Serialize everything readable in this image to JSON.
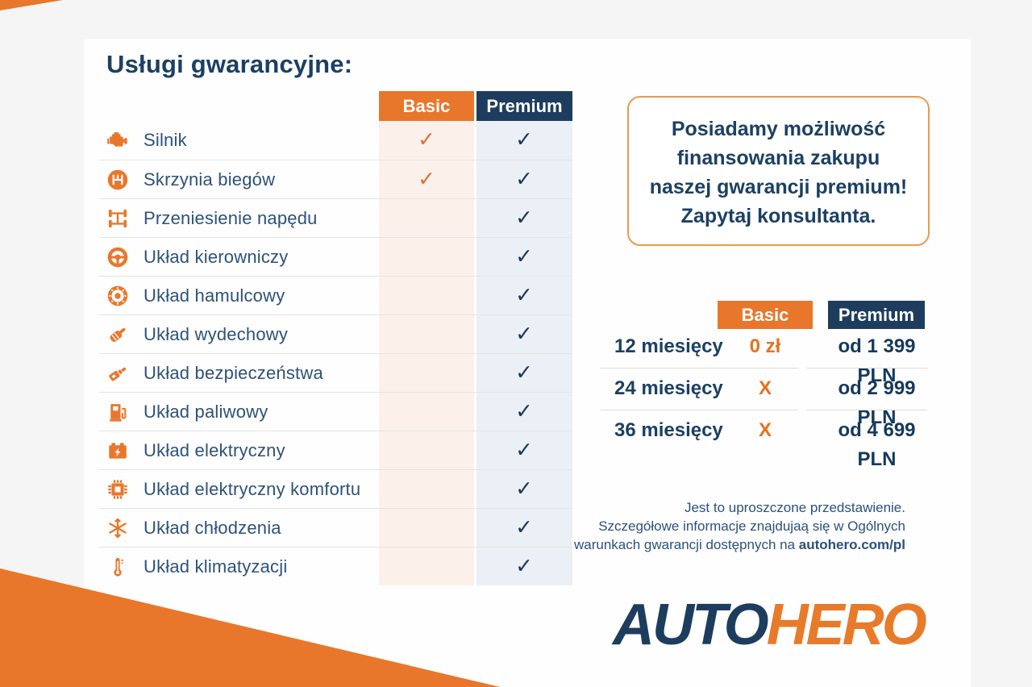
{
  "services": {
    "title": "Usługi gwarancyjne:",
    "header": {
      "basic": "Basic",
      "premium": "Premium"
    },
    "check_glyph": "✓",
    "rows": [
      {
        "icon": "engine-icon",
        "label": "Silnik",
        "basic": true,
        "premium": true
      },
      {
        "icon": "gearbox-icon",
        "label": "Skrzynia biegów",
        "basic": true,
        "premium": true
      },
      {
        "icon": "drivetrain-icon",
        "label": "Przeniesienie napędu",
        "basic": false,
        "premium": true
      },
      {
        "icon": "steering-wheel-icon",
        "label": "Układ kierowniczy",
        "basic": false,
        "premium": true
      },
      {
        "icon": "brake-disc-icon",
        "label": "Układ hamulcowy",
        "basic": false,
        "premium": true
      },
      {
        "icon": "exhaust-icon",
        "label": "Układ wydechowy",
        "basic": false,
        "premium": true
      },
      {
        "icon": "seatbelt-icon",
        "label": "Układ bezpieczeństwa",
        "basic": false,
        "premium": true
      },
      {
        "icon": "fuel-pump-icon",
        "label": "Układ paliwowy",
        "basic": false,
        "premium": true
      },
      {
        "icon": "battery-icon",
        "label": "Układ elektryczny",
        "basic": false,
        "premium": true
      },
      {
        "icon": "chip-icon",
        "label": "Układ elektryczny komfortu",
        "basic": false,
        "premium": true
      },
      {
        "icon": "snowflake-icon",
        "label": "Układ chłodzenia",
        "basic": false,
        "premium": true
      },
      {
        "icon": "thermometer-icon",
        "label": "Układ klimatyzacji",
        "basic": false,
        "premium": true
      }
    ]
  },
  "info_box": {
    "lines": [
      "Posiadamy możliwość",
      "finansowania zakupu",
      "naszej gwarancji premium!",
      "Zapytaj konsultanta."
    ]
  },
  "pricing": {
    "header": {
      "basic": "Basic",
      "premium": "Premium"
    },
    "rows": [
      {
        "period": "12 miesięcy",
        "basic": "0 zł",
        "premium": "od 1 399 PLN"
      },
      {
        "period": "24 miesięcy",
        "basic": "X",
        "premium": "od 2 999 PLN"
      },
      {
        "period": "36 miesięcy",
        "basic": "X",
        "premium": "od 4 699 PLN"
      }
    ]
  },
  "disclaimer": {
    "line1": "Jest to uproszczone przedstawienie.",
    "line2": "Szczegółowe informacje znajdujaą się w Ogólnych",
    "line3_prefix": "warunkach gwarancji dostępnych na ",
    "line3_bold": "autohero.com/pl"
  },
  "logo": {
    "auto": "AUTO",
    "hero": "HERO"
  },
  "colors": {
    "orange": "#e8772c",
    "navy": "#1e3d5e",
    "title_navy": "#1b4063",
    "label_navy": "#2d5278",
    "basic_col_bg": "#fcf1ea",
    "premium_col_bg": "#ebf0f6",
    "check_orange": "#d9743a",
    "check_navy": "#1d3a57",
    "price_orange": "#e4721f",
    "price_navy": "#15395d",
    "info_border": "#eb9a4d",
    "logo_navy": "#1d3d5e",
    "logo_orange": "#e87b2a"
  }
}
